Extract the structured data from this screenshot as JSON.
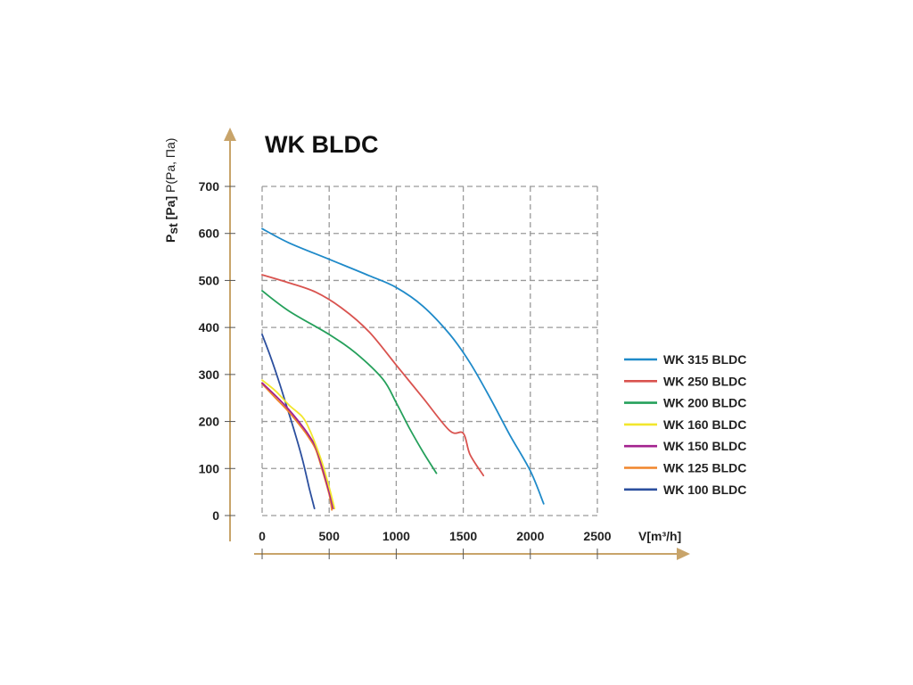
{
  "chart_data": {
    "type": "line",
    "title": "WK BLDC",
    "xlabel": "V[m³/h]",
    "ylabel": {
      "main": "P",
      "sub": "st",
      "rest": " [Pa]",
      "alt": " P(Pa, Па)"
    },
    "xlim": [
      0,
      2500
    ],
    "ylim": [
      0,
      700
    ],
    "x_ticks": [
      0,
      500,
      1000,
      1500,
      2000,
      2500
    ],
    "y_ticks": [
      0,
      100,
      200,
      300,
      400,
      500,
      600,
      700
    ],
    "grid": true,
    "legend_position": "right",
    "axis_color": "#c8a46a",
    "series": [
      {
        "name": "WK 315 BLDC",
        "color": "#1f8ac9",
        "x": [
          0,
          200,
          500,
          800,
          1000,
          1200,
          1400,
          1550,
          1700,
          1850,
          2000,
          2100
        ],
        "y": [
          610,
          580,
          545,
          510,
          485,
          445,
          385,
          325,
          250,
          170,
          95,
          25
        ]
      },
      {
        "name": "WK 250 BLDC",
        "color": "#d9534f",
        "x": [
          0,
          200,
          400,
          600,
          800,
          1000,
          1200,
          1400,
          1500,
          1550,
          1650
        ],
        "y": [
          512,
          495,
          475,
          440,
          390,
          320,
          250,
          180,
          175,
          130,
          85
        ]
      },
      {
        "name": "WK 200 BLDC",
        "color": "#25a05b",
        "x": [
          0,
          200,
          500,
          700,
          900,
          1000,
          1100,
          1200,
          1300
        ],
        "y": [
          478,
          435,
          385,
          345,
          290,
          240,
          185,
          135,
          90
        ]
      },
      {
        "name": "WK 160 BLDC",
        "color": "#f2e62d",
        "x": [
          0,
          100,
          200,
          300,
          350,
          400,
          450,
          500,
          540
        ],
        "y": [
          288,
          265,
          235,
          210,
          185,
          150,
          110,
          60,
          15
        ]
      },
      {
        "name": "WK 150 BLDC",
        "color": "#a3228f",
        "x": [
          0,
          100,
          200,
          300,
          350,
          400,
          450,
          500,
          530
        ],
        "y": [
          282,
          255,
          225,
          190,
          170,
          145,
          100,
          50,
          15
        ]
      },
      {
        "name": "WK 125 BLDC",
        "color": "#f0862b",
        "x": [
          0,
          100,
          200,
          300,
          350,
          400,
          450,
          500,
          520
        ],
        "y": [
          280,
          250,
          220,
          185,
          165,
          140,
          95,
          45,
          12
        ]
      },
      {
        "name": "WK 100 BLDC",
        "color": "#2c4f9e",
        "x": [
          0,
          60,
          120,
          180,
          240,
          300,
          350,
          390
        ],
        "y": [
          385,
          340,
          290,
          235,
          180,
          120,
          60,
          15
        ]
      }
    ]
  }
}
